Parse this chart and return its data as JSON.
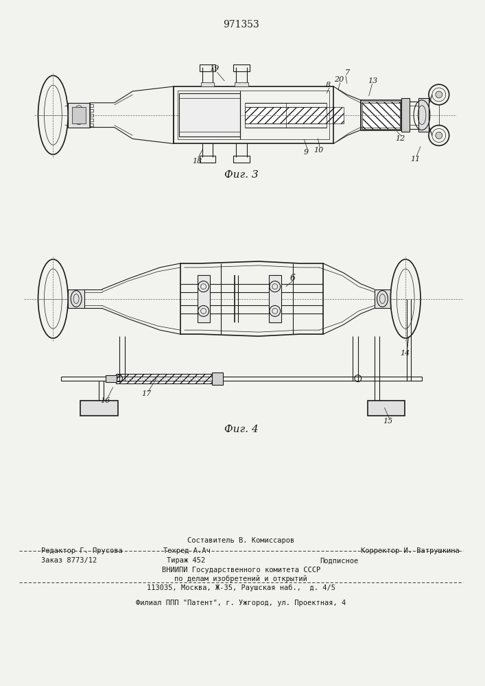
{
  "patent_number": "971353",
  "fig3_label": "Фиг. 3",
  "fig4_label": "Фиг. 4",
  "bg_color": "#f2f2ee",
  "line_color": "#1a1a1a"
}
